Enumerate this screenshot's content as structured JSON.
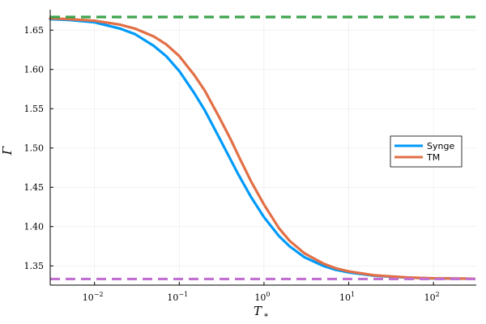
{
  "chart_data": {
    "type": "line",
    "xscale": "log",
    "xlim": [
      0.003,
      320
    ],
    "ylim": [
      1.3255,
      1.676
    ],
    "xlabel_main": "T",
    "xlabel_sub": "*",
    "ylabel": "Γ",
    "grid": true,
    "legend_position": "right",
    "x_ticks": [
      {
        "value": 0.01,
        "base": "10",
        "exp": "−2"
      },
      {
        "value": 0.1,
        "base": "10",
        "exp": "−1"
      },
      {
        "value": 1,
        "base": "10",
        "exp": "0"
      },
      {
        "value": 10,
        "base": "10",
        "exp": "1"
      },
      {
        "value": 100,
        "base": "10",
        "exp": "2"
      }
    ],
    "y_ticks": [
      {
        "value": 1.35,
        "label": "1.35"
      },
      {
        "value": 1.4,
        "label": "1.40"
      },
      {
        "value": 1.45,
        "label": "1.45"
      },
      {
        "value": 1.5,
        "label": "1.50"
      },
      {
        "value": 1.55,
        "label": "1.55"
      },
      {
        "value": 1.6,
        "label": "1.60"
      },
      {
        "value": 1.65,
        "label": "1.65"
      }
    ],
    "series": [
      {
        "name": "Synge",
        "color": "#009af9",
        "style": "solid",
        "x": [
          0.003,
          0.005,
          0.01,
          0.02,
          0.03,
          0.05,
          0.07,
          0.1,
          0.15,
          0.2,
          0.3,
          0.4,
          0.5,
          0.7,
          1,
          1.5,
          2,
          3,
          5,
          7,
          10,
          20,
          50,
          100,
          300
        ],
        "y": [
          1.664,
          1.663,
          1.66,
          1.652,
          1.645,
          1.63,
          1.617,
          1.598,
          1.57,
          1.548,
          1.512,
          1.486,
          1.466,
          1.438,
          1.412,
          1.388,
          1.375,
          1.361,
          1.35,
          1.345,
          1.3417,
          1.3375,
          1.335,
          1.334,
          1.3337
        ]
      },
      {
        "name": "TM",
        "color": "#e26f46",
        "style": "solid",
        "x": [
          0.003,
          0.005,
          0.01,
          0.02,
          0.03,
          0.05,
          0.07,
          0.1,
          0.15,
          0.2,
          0.3,
          0.4,
          0.5,
          0.7,
          1,
          1.5,
          2,
          3,
          5,
          7,
          10,
          20,
          50,
          100,
          300
        ],
        "y": [
          1.665,
          1.664,
          1.662,
          1.657,
          1.652,
          1.642,
          1.632,
          1.617,
          1.593,
          1.573,
          1.538,
          1.512,
          1.49,
          1.458,
          1.428,
          1.398,
          1.382,
          1.366,
          1.353,
          1.347,
          1.343,
          1.338,
          1.3352,
          1.3342,
          1.3337
        ]
      },
      {
        "color": "#3ea44e",
        "style": "dashed",
        "x": [
          0.003,
          320
        ],
        "y": [
          1.6667,
          1.6667
        ]
      },
      {
        "color": "#c271d2",
        "style": "dashed",
        "x": [
          0.003,
          320
        ],
        "y": [
          1.3333,
          1.3333
        ]
      }
    ]
  }
}
